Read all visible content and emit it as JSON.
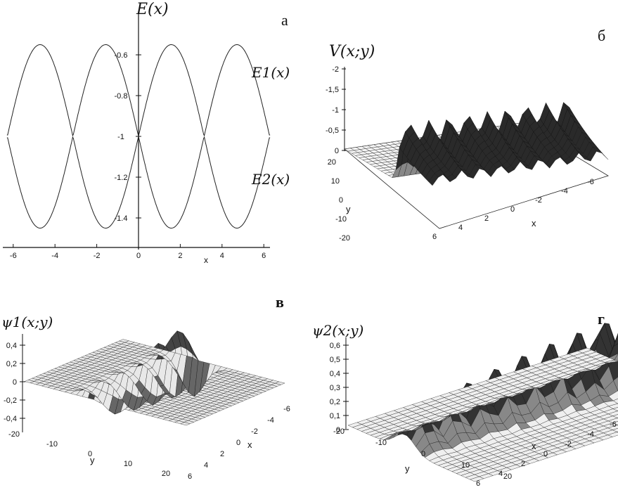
{
  "panels": {
    "a": {
      "tag": "а",
      "ylabel": "E(x)",
      "xlabel": "x",
      "curve1_label": "E1(x)",
      "curve2_label": "E2(x)",
      "xticks": [
        "-6",
        "-4",
        "-2",
        "0",
        "2",
        "4",
        "6"
      ],
      "yticks": [
        "-0.6",
        "-0.8",
        "-1",
        "-1.2",
        "-1.4"
      ]
    },
    "b": {
      "tag": "б",
      "zlabel": "V(x;y)",
      "xlabel": "x",
      "ylabel": "y",
      "zticks": [
        "-2",
        "-1,5",
        "-1",
        "-0,5",
        "0"
      ],
      "yticks": [
        "20",
        "10",
        "0",
        "-10",
        "-20"
      ],
      "xticks": [
        "6",
        "4",
        "2",
        "0",
        "-2",
        "-4",
        "-6"
      ]
    },
    "c": {
      "tag": "в",
      "zlabel": "ψ1(x;y)",
      "xlabel": "x",
      "ylabel": "y",
      "zticks": [
        "0,4",
        "0,2",
        "0",
        "-0,2",
        "-0,4"
      ],
      "yticks": [
        "-20",
        "-10",
        "0",
        "10",
        "20"
      ],
      "xticks": [
        "6",
        "4",
        "2",
        "0",
        "-2",
        "-4",
        "-6"
      ]
    },
    "d": {
      "tag": "г",
      "zlabel": "ψ2(x;y)",
      "xlabel": "x",
      "ylabel": "y",
      "zticks": [
        "0,6",
        "0,5",
        "0,4",
        "0,3",
        "0,2",
        "0,1",
        "0"
      ],
      "yticks": [
        "-20",
        "-10",
        "0",
        "10",
        "20"
      ],
      "xticks": [
        "6",
        "4",
        "2",
        "0",
        "-2",
        "-4",
        "-6"
      ]
    }
  },
  "chart_data": [
    {
      "type": "line",
      "xlim": [
        -6.3,
        6.3
      ],
      "ylim": [
        -1.5,
        -0.5
      ],
      "series": [
        {
          "name": "E1(x)",
          "x": [
            -6.3,
            -5.5,
            -4.71,
            -3.9,
            -3.14,
            -2.4,
            -1.57,
            -0.8,
            0,
            0.8,
            1.57,
            2.4,
            3.14,
            3.9,
            4.71,
            5.5,
            6.3
          ],
          "y": [
            -1.0,
            -0.75,
            -0.55,
            -0.75,
            -0.95,
            -0.75,
            -0.55,
            -0.75,
            -0.95,
            -0.75,
            -0.55,
            -0.75,
            -0.95,
            -0.75,
            -0.55,
            -0.75,
            -1.0
          ]
        },
        {
          "name": "E2(x)",
          "x": [
            -6.3,
            -5.5,
            -4.71,
            -3.9,
            -3.14,
            -2.4,
            -1.57,
            -0.8,
            0,
            0.8,
            1.57,
            2.4,
            3.14,
            3.9,
            4.71,
            5.5,
            6.3
          ],
          "y": [
            -1.0,
            -1.25,
            -1.45,
            -1.25,
            -1.05,
            -1.25,
            -1.45,
            -1.25,
            -1.05,
            -1.25,
            -1.45,
            -1.25,
            -1.05,
            -1.25,
            -1.45,
            -1.25,
            -1.0
          ]
        }
      ]
    },
    {
      "type": "surface",
      "title": "V(x;y)",
      "zlim": [
        0,
        -2
      ],
      "xlim": [
        -6,
        6
      ],
      "ylim": [
        -20,
        20
      ]
    },
    {
      "type": "surface",
      "title": "ψ1(x;y)",
      "zlim": [
        -0.4,
        0.4
      ],
      "xlim": [
        -6,
        6
      ],
      "ylim": [
        -20,
        20
      ]
    },
    {
      "type": "surface",
      "title": "ψ2(x;y)",
      "zlim": [
        0,
        0.6
      ],
      "xlim": [
        -6,
        6
      ],
      "ylim": [
        -20,
        20
      ]
    }
  ]
}
